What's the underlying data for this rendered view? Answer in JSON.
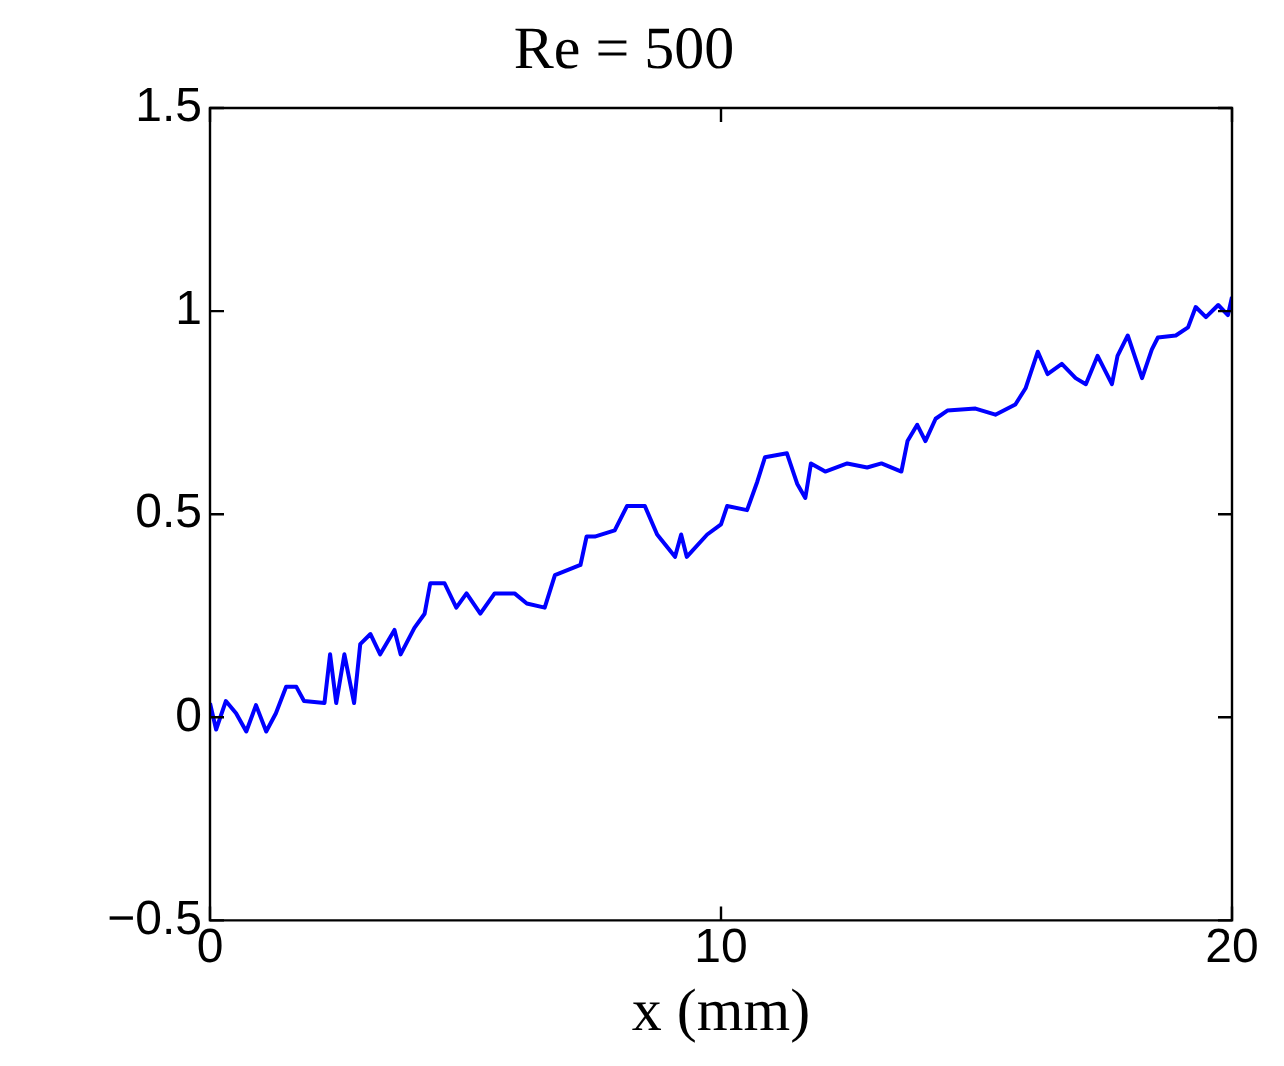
{
  "chart_data": {
    "type": "line",
    "title": "Re = 500",
    "xlabel": "x (mm)",
    "xlim": [
      0,
      20
    ],
    "xticks": [
      0,
      10,
      20
    ],
    "ylim": [
      -0.5,
      1.5
    ],
    "yticks": [
      {
        "value": -0.5,
        "label": "−0.5"
      },
      0,
      0.5,
      1,
      1.5
    ],
    "grid": false,
    "legend": false,
    "marker": "none",
    "line_style": "solid",
    "series": [
      {
        "color": "#0000ff",
        "x": [
          0,
          0.12,
          0.31,
          0.51,
          0.71,
          0.9,
          1.1,
          1.29,
          1.49,
          1.69,
          1.84,
          2.24,
          2.35,
          2.47,
          2.63,
          2.82,
          2.94,
          3.14,
          3.33,
          3.61,
          3.73,
          4,
          4.2,
          4.31,
          4.59,
          4.82,
          5.02,
          5.29,
          5.57,
          5.96,
          6.2,
          6.55,
          6.75,
          7.25,
          7.37,
          7.53,
          7.92,
          8.16,
          8.51,
          8.75,
          9.1,
          9.22,
          9.33,
          9.73,
          10,
          10.12,
          10.51,
          10.71,
          10.86,
          11.29,
          11.49,
          11.65,
          11.76,
          12.04,
          12.47,
          12.86,
          13.14,
          13.53,
          13.65,
          13.84,
          14,
          14.2,
          14.43,
          14.98,
          15.37,
          15.76,
          15.96,
          16.2,
          16.39,
          16.67,
          16.94,
          17.14,
          17.37,
          17.65,
          17.76,
          17.96,
          18.24,
          18.43,
          18.55,
          18.9,
          19.14,
          19.29,
          19.49,
          19.73,
          19.92,
          20
        ],
        "values": [
          0.035,
          -0.03,
          0.04,
          0.01,
          -0.035,
          0.03,
          -0.035,
          0.01,
          0.075,
          0.075,
          0.04,
          0.035,
          0.155,
          0.035,
          0.155,
          0.035,
          0.18,
          0.205,
          0.155,
          0.215,
          0.155,
          0.22,
          0.255,
          0.33,
          0.33,
          0.27,
          0.305,
          0.255,
          0.305,
          0.305,
          0.28,
          0.27,
          0.35,
          0.375,
          0.445,
          0.445,
          0.46,
          0.52,
          0.52,
          0.45,
          0.395,
          0.45,
          0.395,
          0.45,
          0.475,
          0.52,
          0.51,
          0.58,
          0.64,
          0.65,
          0.575,
          0.54,
          0.625,
          0.605,
          0.625,
          0.615,
          0.625,
          0.605,
          0.68,
          0.72,
          0.68,
          0.735,
          0.755,
          0.76,
          0.745,
          0.77,
          0.81,
          0.9,
          0.845,
          0.87,
          0.835,
          0.82,
          0.89,
          0.82,
          0.89,
          0.94,
          0.835,
          0.905,
          0.935,
          0.94,
          0.96,
          1.01,
          0.985,
          1.015,
          0.99,
          1.035
        ]
      }
    ]
  }
}
